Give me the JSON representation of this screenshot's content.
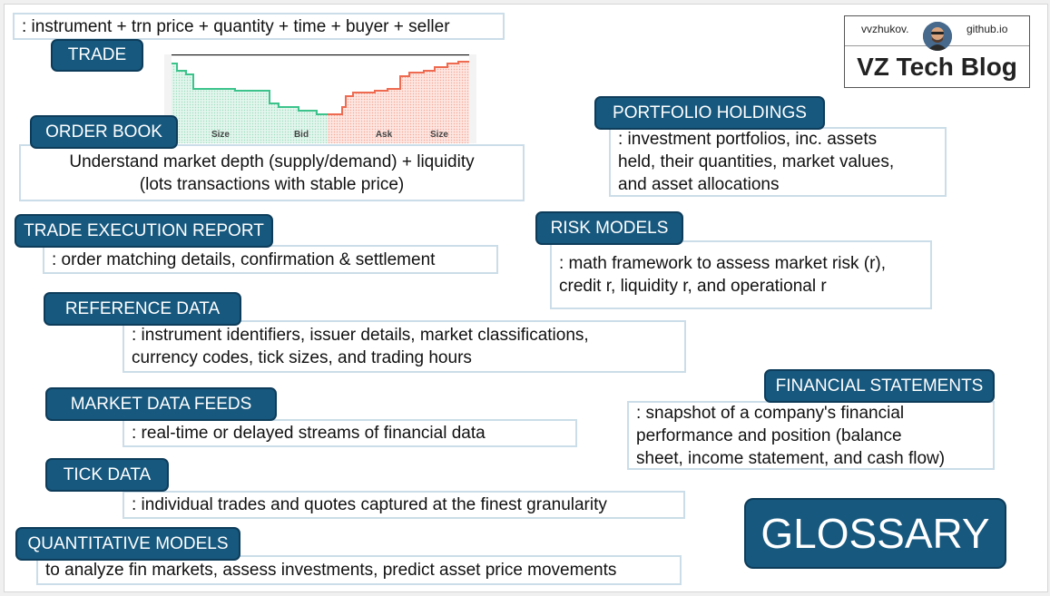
{
  "trade": {
    "label": "TRADE",
    "desc": ": instrument + trn price + quantity + time + buyer + seller"
  },
  "order_book": {
    "label": "ORDER BOOK",
    "desc_lines": [
      "Understand market depth (supply/demand) + liquidity",
      "(lots transactions with stable price)"
    ]
  },
  "depth_chart": {
    "labels": [
      "Size",
      "Bid",
      "Ask",
      "Size"
    ],
    "bid_color": "#3cc38c",
    "ask_color": "#ee6a50"
  },
  "trade_execution": {
    "label": "TRADE EXECUTION REPORT",
    "desc": ": order matching details, confirmation & settlement"
  },
  "reference_data": {
    "label": "REFERENCE DATA",
    "desc_lines": [
      ": instrument identifiers, issuer details, market classifications,",
      "currency codes, tick sizes, and trading hours"
    ]
  },
  "market_data": {
    "label": "MARKET DATA FEEDS",
    "desc": ": real-time or delayed streams of financial data"
  },
  "tick_data": {
    "label": "TICK DATA",
    "desc": ": individual trades and quotes captured at the finest granularity"
  },
  "quant_models": {
    "label": "QUANTITATIVE MODELS",
    "desc": "to analyze fin markets, assess investments, predict asset price movements"
  },
  "portfolio": {
    "label": "PORTFOLIO HOLDINGS",
    "desc_lines": [
      ": investment portfolios, inc. assets",
      "held, their quantities, market values,",
      "and asset allocations"
    ]
  },
  "risk_models": {
    "label": "RISK MODELS",
    "desc_lines": [
      ": math framework to assess market risk (r),",
      "credit r, liquidity r, and operational r"
    ]
  },
  "financial_statements": {
    "label": "FINANCIAL STATEMENTS",
    "desc_lines": [
      ": snapshot of a company's financial",
      "performance and position (balance",
      "sheet, income statement, and cash flow)"
    ]
  },
  "logo": {
    "user": "vvzhukov.",
    "site": "github.io",
    "title": "VZ Tech Blog"
  },
  "glossary": {
    "label": "GLOSSARY"
  },
  "colors": {
    "label_fill": "#17587e",
    "box_border": "#cbdde8"
  }
}
